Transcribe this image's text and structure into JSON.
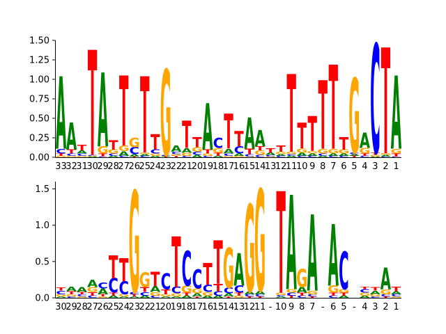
{
  "chart_data": [
    {
      "type": "logo",
      "title": "",
      "xlabel": "",
      "ylabel": "",
      "ylim": [
        0,
        1.5
      ],
      "yticks": [
        "0.00",
        "0.25",
        "0.50",
        "0.75",
        "1.00",
        "1.25",
        "1.50"
      ],
      "xticks": [
        "33",
        "32",
        "31",
        "30",
        "29",
        "28",
        "27",
        "26",
        "25",
        "24",
        "23",
        "22",
        "21",
        "20",
        "19",
        "18",
        "17",
        "16",
        "15",
        "14",
        "13",
        "12",
        "11",
        "10",
        "9",
        "8",
        "7",
        "6",
        "5",
        "4",
        "3",
        "2",
        "1"
      ],
      "columns": [
        [
          [
            "G",
            0.02
          ],
          [
            "T",
            0.03
          ],
          [
            "C",
            0.06
          ],
          [
            "A",
            0.93
          ]
        ],
        [
          [
            "G",
            0.02
          ],
          [
            "C",
            0.03
          ],
          [
            "T",
            0.05
          ],
          [
            "A",
            0.35
          ]
        ],
        [
          [
            "G",
            0.02
          ],
          [
            "C",
            0.03
          ],
          [
            "A",
            0.04
          ],
          [
            "T",
            0.07
          ]
        ],
        [
          [
            "A",
            0.01
          ],
          [
            "G",
            0.01
          ],
          [
            "C",
            0.01
          ],
          [
            "T",
            1.35
          ]
        ],
        [
          [
            "C",
            0.01
          ],
          [
            "T",
            0.04
          ],
          [
            "G",
            0.09
          ],
          [
            "A",
            0.95
          ]
        ],
        [
          [
            "A",
            0.02
          ],
          [
            "C",
            0.03
          ],
          [
            "G",
            0.05
          ],
          [
            "T",
            0.12
          ]
        ],
        [
          [
            "C",
            0.02
          ],
          [
            "A",
            0.06
          ],
          [
            "G",
            0.07
          ],
          [
            "T",
            0.9
          ]
        ],
        [
          [
            "T",
            0.01
          ],
          [
            "A",
            0.03
          ],
          [
            "C",
            0.09
          ],
          [
            "G",
            0.12
          ]
        ],
        [
          [
            "C",
            0.02
          ],
          [
            "A",
            0.02
          ],
          [
            "G",
            0.02
          ],
          [
            "T",
            0.98
          ]
        ],
        [
          [
            "A",
            0.02
          ],
          [
            "G",
            0.03
          ],
          [
            "C",
            0.05
          ],
          [
            "T",
            0.2
          ]
        ],
        [
          [
            "T",
            0.01
          ],
          [
            "A",
            0.01
          ],
          [
            "C",
            0.01
          ],
          [
            "G",
            1.1
          ]
        ],
        [
          [
            "T",
            0.02
          ],
          [
            "G",
            0.02
          ],
          [
            "C",
            0.03
          ],
          [
            "A",
            0.08
          ]
        ],
        [
          [
            "C",
            0.02
          ],
          [
            "G",
            0.04
          ],
          [
            "A",
            0.06
          ],
          [
            "T",
            0.35
          ]
        ],
        [
          [
            "A",
            0.03
          ],
          [
            "C",
            0.04
          ],
          [
            "G",
            0.06
          ],
          [
            "T",
            0.13
          ]
        ],
        [
          [
            "C",
            0.02
          ],
          [
            "G",
            0.03
          ],
          [
            "T",
            0.05
          ],
          [
            "A",
            0.6
          ]
        ],
        [
          [
            "A",
            0.02
          ],
          [
            "T",
            0.04
          ],
          [
            "G",
            0.06
          ],
          [
            "C",
            0.13
          ]
        ],
        [
          [
            "G",
            0.02
          ],
          [
            "C",
            0.03
          ],
          [
            "A",
            0.06
          ],
          [
            "T",
            0.45
          ]
        ],
        [
          [
            "G",
            0.02
          ],
          [
            "A",
            0.03
          ],
          [
            "C",
            0.09
          ],
          [
            "T",
            0.2
          ]
        ],
        [
          [
            "G",
            0.01
          ],
          [
            "C",
            0.03
          ],
          [
            "T",
            0.07
          ],
          [
            "A",
            0.4
          ]
        ],
        [
          [
            "C",
            0.03
          ],
          [
            "G",
            0.06
          ],
          [
            "T",
            0.05
          ],
          [
            "A",
            0.21
          ]
        ],
        [
          [
            "G",
            0.01
          ],
          [
            "C",
            0.02
          ],
          [
            "A",
            0.03
          ],
          [
            "T",
            0.06
          ]
        ],
        [
          [
            "C",
            0.02
          ],
          [
            "A",
            0.02
          ],
          [
            "G",
            0.03
          ],
          [
            "T",
            0.08
          ]
        ],
        [
          [
            "A",
            0.02
          ],
          [
            "C",
            0.02
          ],
          [
            "G",
            0.03
          ],
          [
            "T",
            1.0
          ]
        ],
        [
          [
            "C",
            0.02
          ],
          [
            "A",
            0.04
          ],
          [
            "G",
            0.05
          ],
          [
            "T",
            0.33
          ]
        ],
        [
          [
            "C",
            0.02
          ],
          [
            "A",
            0.03
          ],
          [
            "G",
            0.03
          ],
          [
            "T",
            0.45
          ]
        ],
        [
          [
            "A",
            0.02
          ],
          [
            "C",
            0.03
          ],
          [
            "G",
            0.06
          ],
          [
            "T",
            0.88
          ]
        ],
        [
          [
            "C",
            0.02
          ],
          [
            "A",
            0.03
          ],
          [
            "G",
            0.06
          ],
          [
            "T",
            1.08
          ]
        ],
        [
          [
            "C",
            0.02
          ],
          [
            "A",
            0.03
          ],
          [
            "G",
            0.05
          ],
          [
            "T",
            0.16
          ]
        ],
        [
          [
            "T",
            0.02
          ],
          [
            "A",
            0.02
          ],
          [
            "C",
            0.02
          ],
          [
            "G",
            0.96
          ]
        ],
        [
          [
            "C",
            0.02
          ],
          [
            "T",
            0.03
          ],
          [
            "G",
            0.07
          ],
          [
            "A",
            0.2
          ]
        ],
        [
          [
            "A",
            0.01
          ],
          [
            "G",
            0.02
          ],
          [
            "T",
            0.03
          ],
          [
            "C",
            1.4
          ]
        ],
        [
          [
            "C",
            0.01
          ],
          [
            "A",
            0.02
          ],
          [
            "G",
            0.02
          ],
          [
            "T",
            1.36
          ]
        ],
        [
          [
            "C",
            0.01
          ],
          [
            "T",
            0.04
          ],
          [
            "G",
            0.06
          ],
          [
            "A",
            0.94
          ]
        ]
      ]
    },
    {
      "type": "logo",
      "title": "",
      "xlabel": "",
      "ylabel": "",
      "ylim": [
        0,
        1.6
      ],
      "yticks": [
        "0.0",
        "0.5",
        "1.0",
        "1.5"
      ],
      "xticks": [
        "30",
        "29",
        "28",
        "27",
        "26",
        "25",
        "24",
        "23",
        "22",
        "21",
        "20",
        "19",
        "18",
        "17",
        "16",
        "15",
        "14",
        "13",
        "12",
        "11",
        "-",
        "10",
        "9",
        "8",
        "7",
        "-",
        "6",
        "5",
        "-",
        "4",
        "3",
        "2",
        "1"
      ],
      "columns": [
        [
          [
            "A",
            0.02
          ],
          [
            "G",
            0.03
          ],
          [
            "C",
            0.05
          ],
          [
            "T",
            0.04
          ]
        ],
        [
          [
            "C",
            0.02
          ],
          [
            "G",
            0.03
          ],
          [
            "T",
            0.04
          ],
          [
            "A",
            0.06
          ]
        ],
        [
          [
            "G",
            0.02
          ],
          [
            "C",
            0.03
          ],
          [
            "T",
            0.03
          ],
          [
            "A",
            0.07
          ]
        ],
        [
          [
            "C",
            0.03
          ],
          [
            "T",
            0.05
          ],
          [
            "G",
            0.07
          ],
          [
            "A",
            0.1
          ]
        ],
        [
          [
            "G",
            0.02
          ],
          [
            "T",
            0.03
          ],
          [
            "A",
            0.08
          ],
          [
            "C",
            0.08
          ]
        ],
        [
          [
            "A",
            0.03
          ],
          [
            "T",
            0.04
          ],
          [
            "C",
            0.2
          ],
          [
            "T",
            0.32
          ]
        ],
        [
          [
            "A",
            0.02
          ],
          [
            "G",
            0.03
          ],
          [
            "C",
            0.18
          ],
          [
            "T",
            0.32
          ]
        ],
        [
          [
            "A",
            0.02
          ],
          [
            "T",
            0.03
          ],
          [
            "C",
            0.03
          ],
          [
            "G",
            1.4
          ]
        ],
        [
          [
            "A",
            0.03
          ],
          [
            "C",
            0.05
          ],
          [
            "T",
            0.07
          ],
          [
            "G",
            0.2
          ]
        ],
        [
          [
            "C",
            0.03
          ],
          [
            "G",
            0.05
          ],
          [
            "A",
            0.08
          ],
          [
            "T",
            0.2
          ]
        ],
        [
          [
            "A",
            0.02
          ],
          [
            "G",
            0.03
          ],
          [
            "T",
            0.07
          ],
          [
            "C",
            0.22
          ]
        ],
        [
          [
            "A",
            0.02
          ],
          [
            "G",
            0.04
          ],
          [
            "C",
            0.09
          ],
          [
            "T",
            0.7
          ]
        ],
        [
          [
            "A",
            0.03
          ],
          [
            "T",
            0.04
          ],
          [
            "G",
            0.1
          ],
          [
            "C",
            0.48
          ]
        ],
        [
          [
            "T",
            0.02
          ],
          [
            "A",
            0.04
          ],
          [
            "G",
            0.07
          ],
          [
            "C",
            0.26
          ]
        ],
        [
          [
            "A",
            0.03
          ],
          [
            "G",
            0.05
          ],
          [
            "C",
            0.1
          ],
          [
            "T",
            0.3
          ]
        ],
        [
          [
            "A",
            0.03
          ],
          [
            "C",
            0.06
          ],
          [
            "T",
            0.1
          ],
          [
            "T",
            0.6
          ]
        ],
        [
          [
            "T",
            0.02
          ],
          [
            "A",
            0.04
          ],
          [
            "C",
            0.08
          ],
          [
            "G",
            0.55
          ]
        ],
        [
          [
            "G",
            0.03
          ],
          [
            "T",
            0.04
          ],
          [
            "C",
            0.1
          ],
          [
            "A",
            0.45
          ]
        ],
        [
          [
            "T",
            0.02
          ],
          [
            "C",
            0.03
          ],
          [
            "A",
            0.04
          ],
          [
            "G",
            1.2
          ]
        ],
        [
          [
            "T",
            0.02
          ],
          [
            "C",
            0.03
          ],
          [
            "A",
            0.05
          ],
          [
            "G",
            1.4
          ]
        ],
        null,
        [
          [
            "A",
            0.02
          ],
          [
            "C",
            0.02
          ],
          [
            "G",
            0.03
          ],
          [
            "T",
            1.4
          ]
        ],
        [
          [
            "T",
            0.03
          ],
          [
            "C",
            0.04
          ],
          [
            "G",
            0.05
          ],
          [
            "A",
            1.3
          ]
        ],
        [
          [
            "C",
            0.03
          ],
          [
            "T",
            0.04
          ],
          [
            "A",
            0.08
          ],
          [
            "G",
            0.25
          ]
        ],
        [
          [
            "T",
            0.02
          ],
          [
            "C",
            0.03
          ],
          [
            "G",
            0.05
          ],
          [
            "A",
            1.05
          ]
        ],
        null,
        [
          [
            "C",
            0.03
          ],
          [
            "T",
            0.04
          ],
          [
            "G",
            0.1
          ],
          [
            "A",
            0.85
          ]
        ],
        [
          [
            "A",
            0.03
          ],
          [
            "T",
            0.04
          ],
          [
            "G",
            0.05
          ],
          [
            "C",
            0.52
          ]
        ],
        null,
        [
          [
            "A",
            0.03
          ],
          [
            "G",
            0.04
          ],
          [
            "C",
            0.05
          ],
          [
            "T",
            0.03
          ]
        ],
        [
          [
            "C",
            0.02
          ],
          [
            "G",
            0.03
          ],
          [
            "A",
            0.05
          ],
          [
            "T",
            0.05
          ]
        ],
        [
          [
            "T",
            0.02
          ],
          [
            "C",
            0.03
          ],
          [
            "G",
            0.07
          ],
          [
            "A",
            0.3
          ]
        ],
        [
          [
            "G",
            0.02
          ],
          [
            "C",
            0.03
          ],
          [
            "A",
            0.04
          ],
          [
            "T",
            0.06
          ]
        ]
      ]
    }
  ],
  "colors": {
    "A": "#008000",
    "C": "#0000ff",
    "G": "#ffa500",
    "T": "#ff0000"
  }
}
